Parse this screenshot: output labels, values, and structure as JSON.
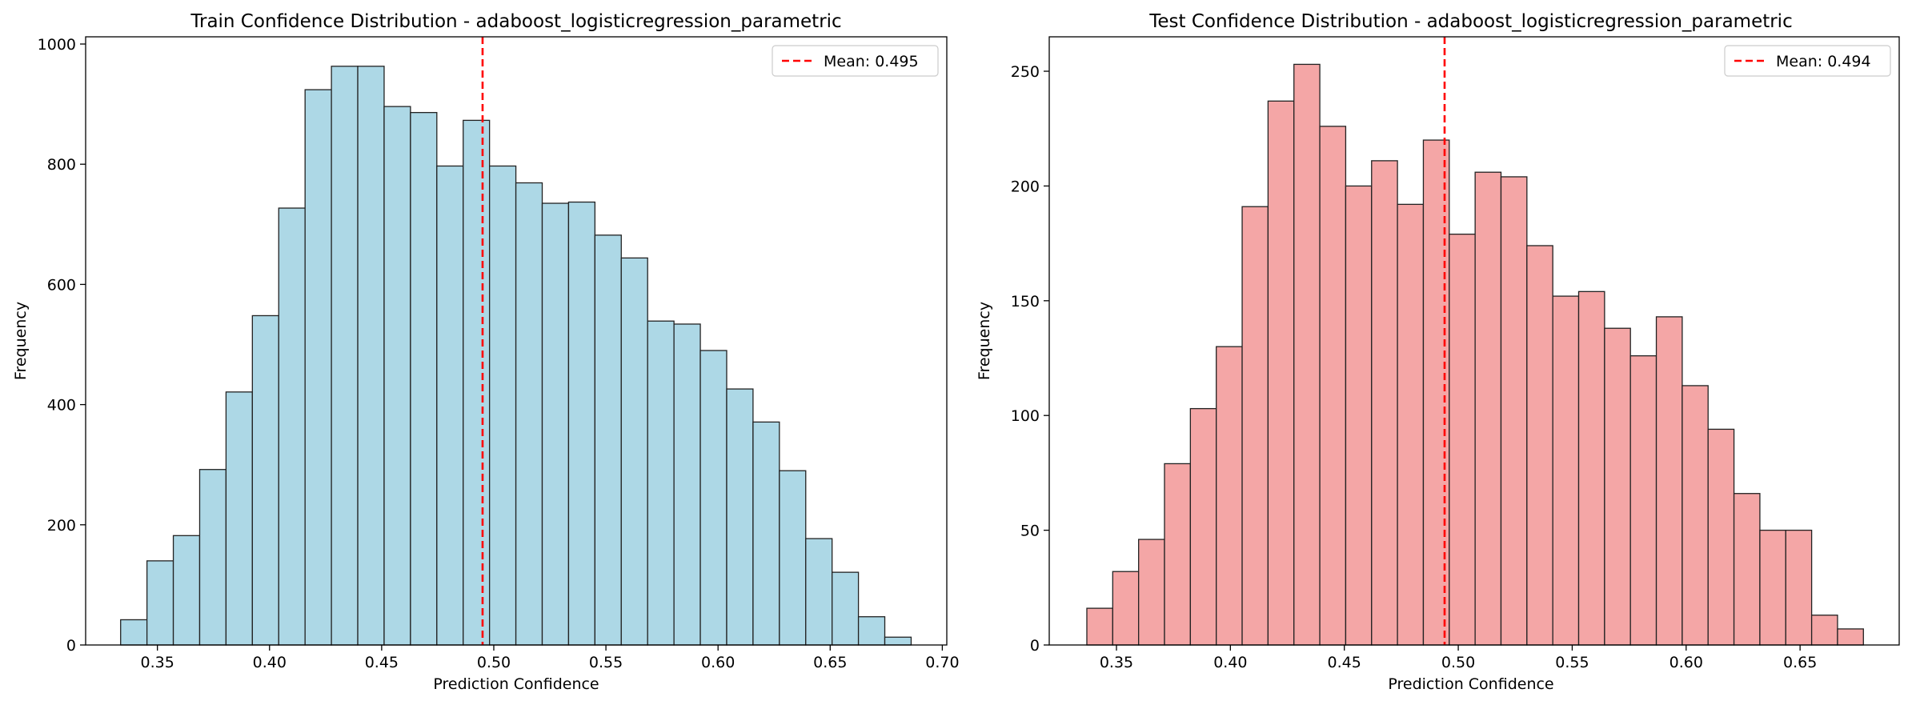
{
  "chart_data": [
    {
      "type": "bar",
      "title": "Train Confidence Distribution - adaboost_logisticregression_parametric",
      "xlabel": "Prediction Confidence",
      "ylabel": "Frequency",
      "xlim": [
        0.318,
        0.702
      ],
      "ylim": [
        0,
        1012
      ],
      "xticks": [
        0.35,
        0.4,
        0.45,
        0.5,
        0.55,
        0.6,
        0.65,
        0.7
      ],
      "xtick_labels": [
        "0.35",
        "0.40",
        "0.45",
        "0.50",
        "0.55",
        "0.60",
        "0.65",
        "0.70"
      ],
      "yticks": [
        0,
        200,
        400,
        600,
        800,
        1000
      ],
      "ytick_labels": [
        "0",
        "200",
        "400",
        "600",
        "800",
        "1000"
      ],
      "bin_start": 0.3336,
      "bin_width": 0.01175,
      "values": [
        42,
        140,
        182,
        292,
        421,
        548,
        727,
        924,
        963,
        963,
        896,
        886,
        797,
        873,
        797,
        769,
        735,
        737,
        682,
        644,
        539,
        534,
        490,
        426,
        371,
        290,
        177,
        121,
        47,
        13
      ],
      "mean": 0.495,
      "mean_label": "Mean: 0.495",
      "bar_color": "#add8e6",
      "edge_color": "#222222",
      "mean_color": "#ff0000",
      "grid": false,
      "legend_position": "upper right"
    },
    {
      "type": "bar",
      "title": "Test Confidence Distribution - adaboost_logisticregression_parametric",
      "xlabel": "Prediction Confidence",
      "ylabel": "Frequency",
      "xlim": [
        0.3205,
        0.6935
      ],
      "ylim": [
        0,
        265
      ],
      "xticks": [
        0.35,
        0.4,
        0.45,
        0.5,
        0.55,
        0.6,
        0.65
      ],
      "xtick_labels": [
        "0.35",
        "0.40",
        "0.45",
        "0.50",
        "0.55",
        "0.60",
        "0.65"
      ],
      "yticks": [
        0,
        50,
        100,
        150,
        200,
        250
      ],
      "ytick_labels": [
        "0",
        "50",
        "100",
        "150",
        "200",
        "250"
      ],
      "bin_start": 0.337,
      "bin_width": 0.01136,
      "values": [
        16,
        32,
        46,
        79,
        103,
        130,
        191,
        237,
        253,
        226,
        200,
        211,
        192,
        220,
        179,
        206,
        204,
        174,
        152,
        154,
        138,
        126,
        143,
        113,
        94,
        66,
        50,
        50,
        13,
        7
      ],
      "mean": 0.494,
      "mean_label": "Mean: 0.494",
      "bar_color": "#f4a6a6",
      "edge_color": "#222222",
      "mean_color": "#ff0000",
      "grid": false,
      "legend_position": "upper right"
    }
  ]
}
